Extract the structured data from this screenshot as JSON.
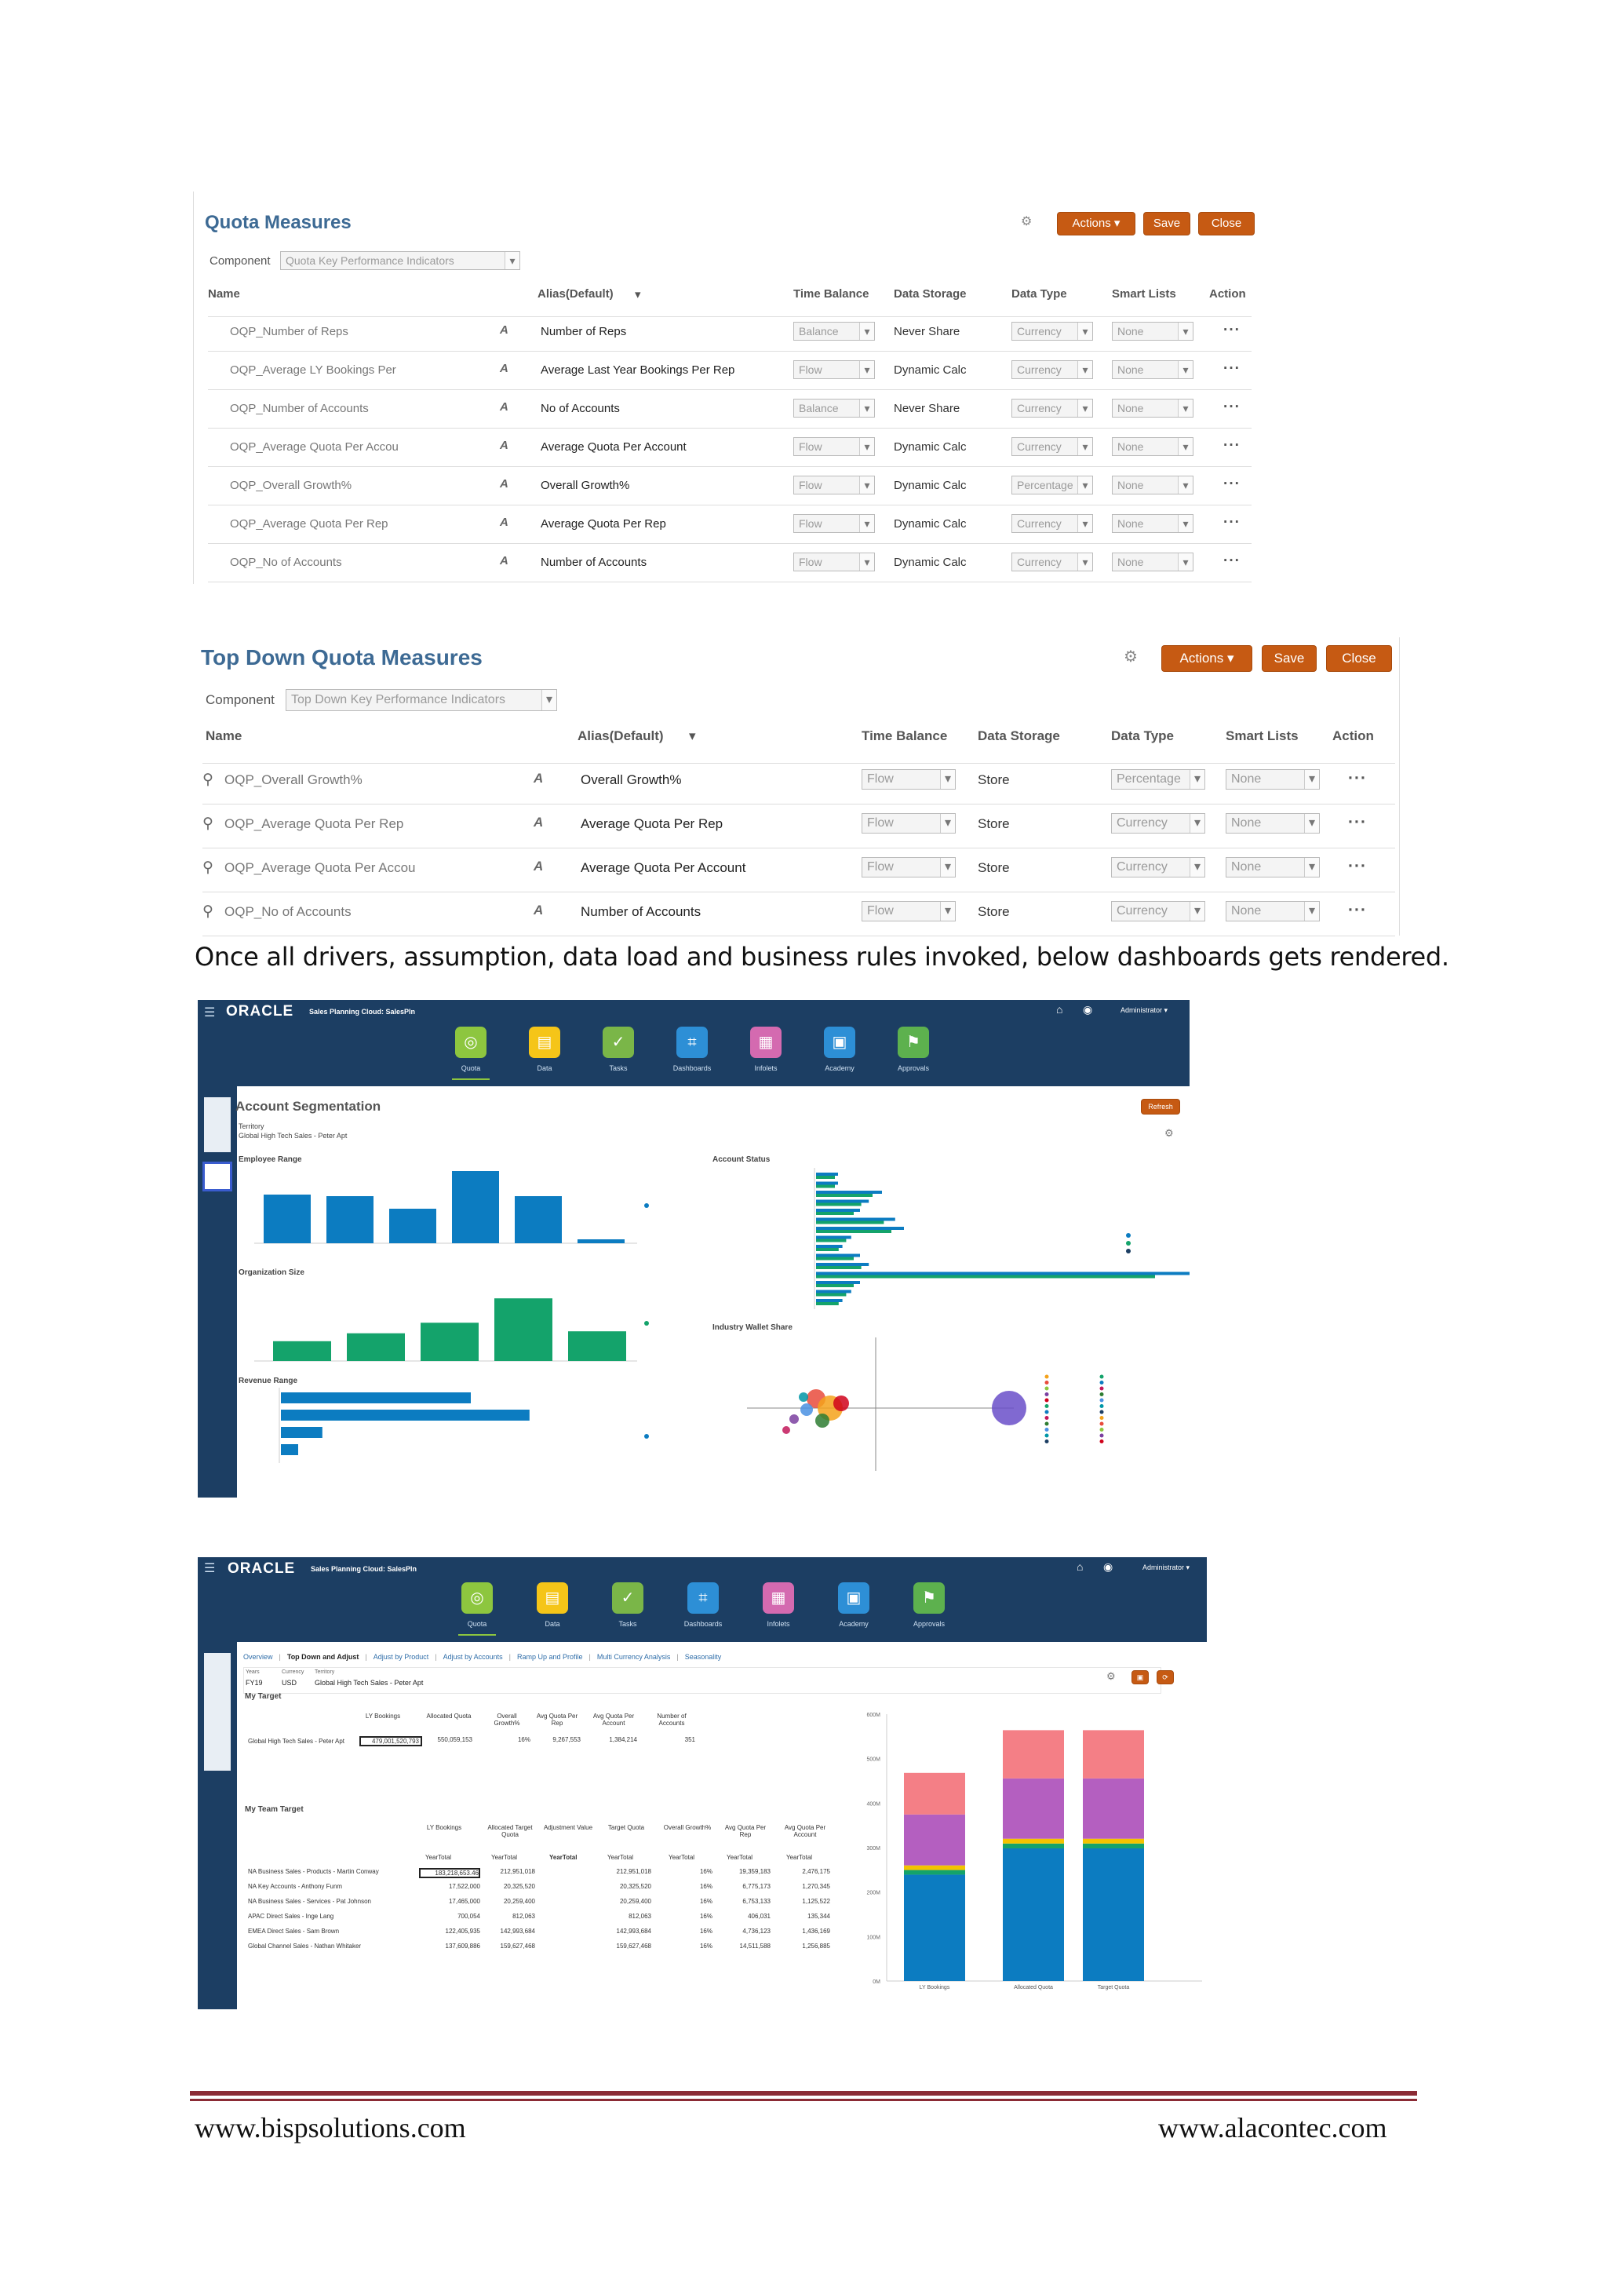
{
  "panel1": {
    "title": "Quota Measures",
    "component_label": "Component",
    "component_value": "Quota Key Performance Indicators",
    "buttons": {
      "actions": "Actions",
      "save": "Save",
      "close": "Close"
    },
    "headers": [
      "Name",
      "Alias(Default)",
      "Time Balance",
      "Data Storage",
      "Data Type",
      "Smart Lists",
      "Action"
    ],
    "rows": [
      {
        "name": "OQP_Number of Reps",
        "alias": "Number of Reps",
        "time_balance": "Balance",
        "storage": "Never Share",
        "data_type": "Currency",
        "smart_list": "None"
      },
      {
        "name": "OQP_Average LY Bookings Per",
        "alias": "Average Last Year Bookings Per Rep",
        "time_balance": "Flow",
        "storage": "Dynamic Calc",
        "data_type": "Currency",
        "smart_list": "None"
      },
      {
        "name": "OQP_Number of Accounts",
        "alias": "No of Accounts",
        "time_balance": "Balance",
        "storage": "Never Share",
        "data_type": "Currency",
        "smart_list": "None"
      },
      {
        "name": "OQP_Average Quota Per Accou",
        "alias": "Average Quota Per Account",
        "time_balance": "Flow",
        "storage": "Dynamic Calc",
        "data_type": "Currency",
        "smart_list": "None"
      },
      {
        "name": "OQP_Overall Growth%",
        "alias": "Overall Growth%",
        "time_balance": "Flow",
        "storage": "Dynamic Calc",
        "data_type": "Percentage",
        "smart_list": "None"
      },
      {
        "name": "OQP_Average Quota Per Rep",
        "alias": "Average Quota Per Rep",
        "time_balance": "Flow",
        "storage": "Dynamic Calc",
        "data_type": "Currency",
        "smart_list": "None"
      },
      {
        "name": "OQP_No of Accounts",
        "alias": "Number of Accounts",
        "time_balance": "Flow",
        "storage": "Dynamic Calc",
        "data_type": "Currency",
        "smart_list": "None"
      }
    ]
  },
  "panel2": {
    "title": "Top Down Quota Measures",
    "component_label": "Component",
    "component_value": "Top Down Key Performance Indicators",
    "buttons": {
      "actions": "Actions",
      "save": "Save",
      "close": "Close"
    },
    "headers": [
      "Name",
      "Alias(Default)",
      "Time Balance",
      "Data Storage",
      "Data Type",
      "Smart Lists",
      "Action"
    ],
    "rows": [
      {
        "name": "OQP_Overall Growth%",
        "alias": "Overall Growth%",
        "time_balance": "Flow",
        "storage": "Store",
        "data_type": "Percentage",
        "smart_list": "None"
      },
      {
        "name": "OQP_Average Quota Per Rep",
        "alias": "Average Quota Per Rep",
        "time_balance": "Flow",
        "storage": "Store",
        "data_type": "Currency",
        "smart_list": "None"
      },
      {
        "name": "OQP_Average Quota Per Accou",
        "alias": "Average Quota Per Account",
        "time_balance": "Flow",
        "storage": "Store",
        "data_type": "Currency",
        "smart_list": "None"
      },
      {
        "name": "OQP_No of Accounts",
        "alias": "Number of Accounts",
        "time_balance": "Flow",
        "storage": "Store",
        "data_type": "Currency",
        "smart_list": "None"
      }
    ]
  },
  "caption": "Once all drivers, assumption, data load and business rules invoked, below dashboards gets rendered.",
  "dash1": {
    "brand": "ORACLE",
    "app_name": "Sales Planning Cloud: SalesPln",
    "user": "Administrator",
    "nav": [
      "Quota",
      "Data",
      "Tasks",
      "Dashboards",
      "Infolets",
      "Academy",
      "Approvals"
    ],
    "nav_colors": [
      "#8dc63f",
      "#f5c518",
      "#7ab648",
      "#2d8fd6",
      "#d46ab0",
      "#2d8fd6",
      "#5db14e"
    ],
    "title": "Account Segmentation",
    "refresh": "Refresh",
    "territory_label": "Territory",
    "territory_value": "Global High Tech Sales - Peter Apt",
    "sections": [
      "Employee Range",
      "Account Status",
      "Organization Size",
      "Industry Wallet Share",
      "Revenue Range"
    ],
    "emp_bars": [
      0.62,
      0.6,
      0.44,
      0.92,
      0.6,
      0.05
    ],
    "org_bars": [
      0.3,
      0.42,
      0.58,
      0.95,
      0.45
    ],
    "rev_bars": [
      0.55,
      0.72,
      0.12,
      0.05
    ],
    "status_bars": [
      0.05,
      0.05,
      0.15,
      0.12,
      0.1,
      0.18,
      0.2,
      0.08,
      0.06,
      0.1,
      0.12,
      0.9,
      0.1,
      0.08,
      0.06
    ]
  },
  "dash2": {
    "brand": "ORACLE",
    "app_name": "Sales Planning Cloud: SalesPln",
    "user": "Administrator",
    "nav": [
      "Quota",
      "Data",
      "Tasks",
      "Dashboards",
      "Infolets",
      "Academy",
      "Approvals"
    ],
    "nav_colors": [
      "#8dc63f",
      "#f5c518",
      "#7ab648",
      "#2d8fd6",
      "#d46ab0",
      "#2d8fd6",
      "#5db14e"
    ],
    "tabs": [
      "Overview",
      "Top Down and Adjust",
      "Adjust by Product",
      "Adjust by Accounts",
      "Ramp Up and Profile",
      "Multi Currency Analysis",
      "Seasonality"
    ],
    "pov_labels": [
      "Years",
      "Currency",
      "Territory"
    ],
    "pov_values": [
      "FY19",
      "USD",
      "Global High Tech Sales - Peter Apt"
    ],
    "my_target": "My Target",
    "my_team_target": "My Team Target",
    "target_headers": [
      "LY Bookings",
      "Allocated Quota",
      "Overall Growth%",
      "Avg Quota Per Rep",
      "Avg Quota Per Account",
      "Number of Accounts"
    ],
    "target_row": {
      "label": "Global High Tech Sales - Peter Apt",
      "values": [
        "479,001,520,793",
        "550,059,153",
        "16%",
        "9,267,553",
        "1,384,214",
        "351"
      ]
    },
    "team_headers": [
      "LY Bookings",
      "Allocated Target Quota",
      "Adjustment Value",
      "Target Quota",
      "Overall Growth%",
      "Avg Quota Per Rep",
      "Avg Quota Per Account"
    ],
    "team_sub": [
      "YearTotal",
      "YearTotal",
      "YearTotal",
      "YearTotal",
      "YearTotal",
      "YearTotal",
      "YearTotal"
    ],
    "team_rows": [
      {
        "label": "NA Business Sales - Products - Martin Conway",
        "values": [
          "183,218,653.46",
          "212,951,018",
          "",
          "212,951,018",
          "16%",
          "19,359,183",
          "2,476,175"
        ]
      },
      {
        "label": "NA Key Accounts - Anthony Funm",
        "values": [
          "17,522,000",
          "20,325,520",
          "",
          "20,325,520",
          "16%",
          "6,775,173",
          "1,270,345"
        ]
      },
      {
        "label": "NA Business Sales - Services - Pat Johnson",
        "values": [
          "17,465,000",
          "20,259,400",
          "",
          "20,259,400",
          "16%",
          "6,753,133",
          "1,125,522"
        ]
      },
      {
        "label": "APAC Direct Sales - Inge Lang",
        "values": [
          "700,054",
          "812,063",
          "",
          "812,063",
          "16%",
          "406,031",
          "135,344"
        ]
      },
      {
        "label": "EMEA Direct Sales - Sam Brown",
        "values": [
          "122,405,935",
          "142,993,684",
          "",
          "142,993,684",
          "16%",
          "4,736,123",
          "1,436,169"
        ]
      },
      {
        "label": "Global Channel Sales - Nathan Whitaker",
        "values": [
          "137,609,886",
          "159,627,468",
          "",
          "159,627,468",
          "16%",
          "14,511,588",
          "1,256,885"
        ]
      }
    ],
    "chart_categories": [
      "LY Bookings",
      "Allocated Quota",
      "Target Quota"
    ],
    "chart_ticks": [
      "600M",
      "500M",
      "400M",
      "300M",
      "200M",
      "100M",
      "0M"
    ]
  },
  "footer": {
    "left": "www.bispsolutions.com",
    "right": "www.alacontec.com"
  }
}
